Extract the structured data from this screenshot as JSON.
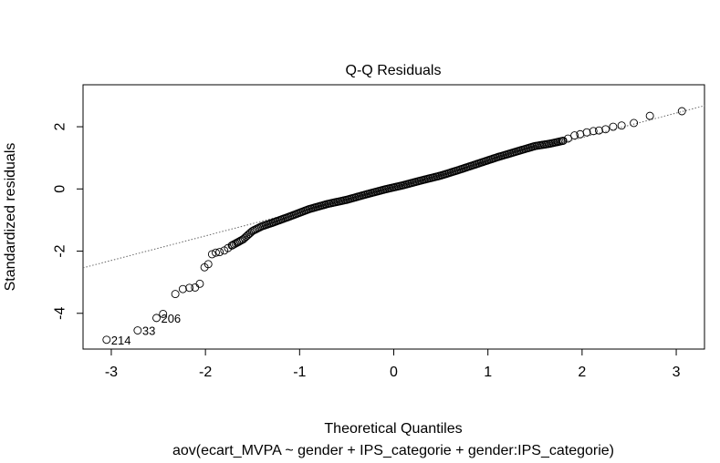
{
  "chart_data": {
    "type": "scatter",
    "title": "Q-Q Residuals",
    "xlabel": "Theoretical Quantiles",
    "ylabel": "Standardized residuals",
    "subtitle": "aov(ecart_MVPA ~ gender + IPS_categorie + gender:IPS_categorie)",
    "xlim": [
      -3.3,
      3.3
    ],
    "ylim": [
      -5.15,
      3.35
    ],
    "xticks": [
      -3,
      -2,
      -1,
      0,
      1,
      2,
      3
    ],
    "yticks": [
      -4,
      -2,
      0,
      2
    ],
    "grid": false,
    "reference_line": {
      "style": "dotted",
      "intercept": 0.07,
      "slope": 0.79
    },
    "point_labels": [
      {
        "label": "214",
        "x": -3.05,
        "y": -4.85
      },
      {
        "label": "33",
        "x": -2.72,
        "y": -4.55
      },
      {
        "label": "206",
        "x": -2.52,
        "y": -4.15
      }
    ],
    "extra_points": [
      {
        "x": -2.45,
        "y": -4.02
      },
      {
        "x": -2.32,
        "y": -3.38
      },
      {
        "x": -2.24,
        "y": -3.22
      },
      {
        "x": -2.17,
        "y": -3.18
      },
      {
        "x": -2.11,
        "y": -3.17
      },
      {
        "x": -2.06,
        "y": -3.05
      },
      {
        "x": -2.01,
        "y": -2.52
      },
      {
        "x": -1.97,
        "y": -2.42
      },
      {
        "x": -1.93,
        "y": -2.1
      },
      {
        "x": -1.89,
        "y": -2.05
      },
      {
        "x": -1.85,
        "y": -2.03
      },
      {
        "x": -1.8,
        "y": -1.98
      },
      {
        "x": -1.76,
        "y": -1.9
      },
      {
        "x": -1.72,
        "y": -1.82
      },
      {
        "x": 1.8,
        "y": 1.55
      },
      {
        "x": 1.85,
        "y": 1.62
      },
      {
        "x": 1.92,
        "y": 1.72
      },
      {
        "x": 1.98,
        "y": 1.76
      },
      {
        "x": 2.05,
        "y": 1.82
      },
      {
        "x": 2.12,
        "y": 1.86
      },
      {
        "x": 2.18,
        "y": 1.88
      },
      {
        "x": 2.25,
        "y": 1.92
      },
      {
        "x": 2.33,
        "y": 2.0
      },
      {
        "x": 2.42,
        "y": 2.04
      },
      {
        "x": 2.55,
        "y": 2.12
      },
      {
        "x": 2.72,
        "y": 2.35
      },
      {
        "x": 3.06,
        "y": 2.5
      }
    ],
    "body_curve": [
      {
        "x": -1.72,
        "y": -1.82
      },
      {
        "x": -1.6,
        "y": -1.62
      },
      {
        "x": -1.5,
        "y": -1.35
      },
      {
        "x": -1.4,
        "y": -1.2
      },
      {
        "x": -1.3,
        "y": -1.1
      },
      {
        "x": -1.1,
        "y": -0.88
      },
      {
        "x": -0.9,
        "y": -0.65
      },
      {
        "x": -0.7,
        "y": -0.48
      },
      {
        "x": -0.5,
        "y": -0.35
      },
      {
        "x": -0.3,
        "y": -0.18
      },
      {
        "x": -0.1,
        "y": -0.02
      },
      {
        "x": 0.1,
        "y": 0.12
      },
      {
        "x": 0.3,
        "y": 0.28
      },
      {
        "x": 0.5,
        "y": 0.43
      },
      {
        "x": 0.7,
        "y": 0.62
      },
      {
        "x": 0.9,
        "y": 0.82
      },
      {
        "x": 1.1,
        "y": 1.02
      },
      {
        "x": 1.3,
        "y": 1.2
      },
      {
        "x": 1.5,
        "y": 1.38
      },
      {
        "x": 1.65,
        "y": 1.45
      },
      {
        "x": 1.8,
        "y": 1.55
      }
    ],
    "body_point_count": 220
  }
}
